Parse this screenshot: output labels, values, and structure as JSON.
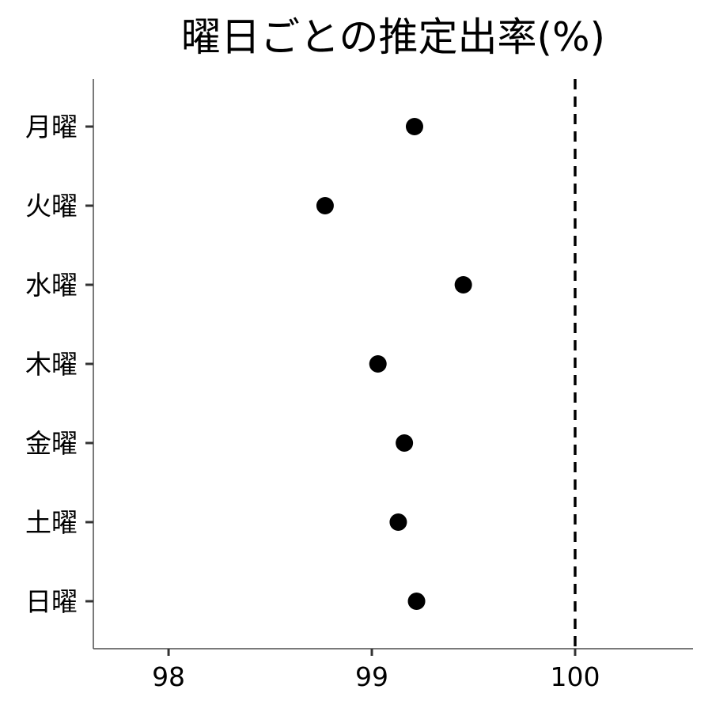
{
  "chart_data": {
    "type": "scatter",
    "title": "曜日ごとの推定出率(%)",
    "xlabel": "",
    "ylabel": "",
    "xlim": [
      97.63,
      100.58
    ],
    "xticks": [
      98,
      99,
      100
    ],
    "categories": [
      "月曜",
      "火曜",
      "水曜",
      "木曜",
      "金曜",
      "土曜",
      "日曜"
    ],
    "values": [
      99.21,
      98.77,
      99.45,
      99.03,
      99.16,
      99.13,
      99.22
    ],
    "reference_line": {
      "x": 100,
      "style": "dashed"
    },
    "grid": false,
    "point_color": "#000000"
  }
}
